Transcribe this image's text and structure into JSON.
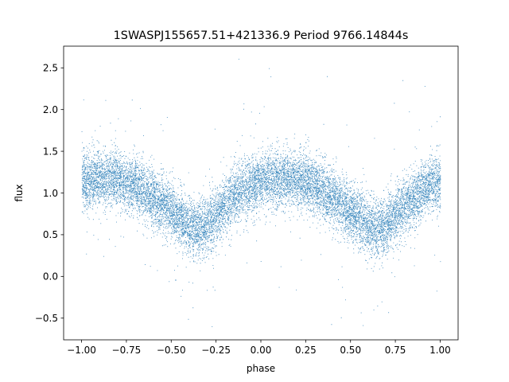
{
  "chart_data": {
    "type": "scatter",
    "title": "1SWASPJ155657.51+421336.9 Period 9766.14844s",
    "xlabel": "phase",
    "ylabel": "flux",
    "xlim": [
      -1.1,
      1.1
    ],
    "ylim": [
      -0.76,
      2.76
    ],
    "grid": false,
    "x_ticks": [
      -1.0,
      -0.75,
      -0.5,
      -0.25,
      0.0,
      0.25,
      0.5,
      0.75,
      1.0
    ],
    "x_tick_labels": [
      "−1.00",
      "−0.75",
      "−0.50",
      "−0.25",
      "0.00",
      "0.25",
      "0.50",
      "0.75",
      "1.00"
    ],
    "y_ticks": [
      -0.5,
      0.0,
      0.5,
      1.0,
      1.5,
      2.0,
      2.5
    ],
    "y_tick_labels": [
      "−0.5",
      "0.0",
      "0.5",
      "1.0",
      "1.5",
      "2.0",
      "2.5"
    ],
    "series": [
      {
        "color": "#1f77b4",
        "marker": "point",
        "point_count_estimate": 14000,
        "phase_range": [
          -1.0,
          1.0
        ],
        "profile_x": [
          -1.0,
          -0.9,
          -0.8,
          -0.7,
          -0.6,
          -0.5,
          -0.45,
          -0.4,
          -0.35,
          -0.3,
          -0.2,
          -0.1,
          0.0,
          0.1,
          0.2,
          0.3,
          0.4,
          0.5,
          0.55,
          0.6,
          0.65,
          0.7,
          0.8,
          0.9,
          1.0
        ],
        "profile_median_flux": [
          1.15,
          1.18,
          1.17,
          1.08,
          0.95,
          0.78,
          0.68,
          0.6,
          0.58,
          0.62,
          0.85,
          1.05,
          1.15,
          1.18,
          1.17,
          1.08,
          0.95,
          0.78,
          0.68,
          0.6,
          0.58,
          0.62,
          0.85,
          1.05,
          1.15
        ],
        "scatter_sigma_flux": 0.17
      }
    ]
  }
}
